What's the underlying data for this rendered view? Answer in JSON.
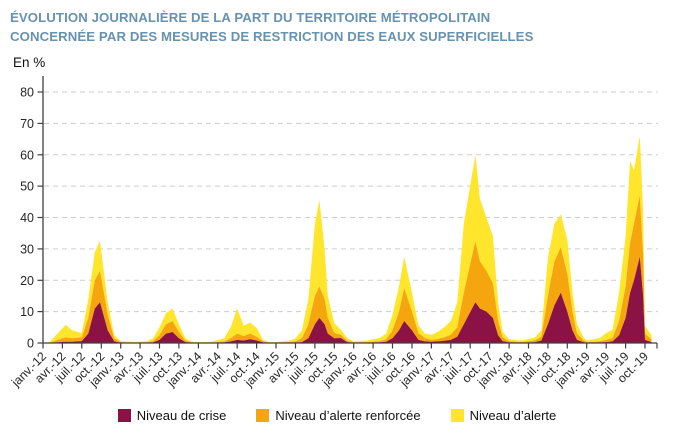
{
  "title": {
    "line1": "ÉVOLUTION JOURNALIÈRE DE LA PART DU TERRITOIRE MÉTROPOLITAIN",
    "line2": "CONCERNÉE PAR DES MESURES DE RESTRICTION DES EAUX SUPERFICIELLES"
  },
  "colors": {
    "title_blue": "#6792B0",
    "axis": "#404040",
    "grid": "#CDCDCD",
    "tick_text": "#262626"
  },
  "chart_data": {
    "type": "area",
    "stacked": true,
    "unit_label": "En %",
    "ylabel": "En %",
    "ylim": [
      0,
      80
    ],
    "yticks": [
      0,
      10,
      20,
      30,
      40,
      50,
      60,
      70,
      80
    ],
    "grid": "horizontal-dashed",
    "legend_position": "bottom",
    "x_description": "Daily data from janv.-12 to oct.-19; x stored as months since janv.-12; ticks every 3 months",
    "xtick_labels": [
      "janv.-12",
      "avr.-12",
      "juil.-12",
      "oct.-12",
      "janv.-13",
      "avr.-13",
      "juil.-13",
      "oct.-13",
      "janv.-14",
      "avr.-14",
      "juil.-14",
      "oct.-14",
      "janv.-15",
      "avr.-15",
      "juil.-15",
      "oct.-15",
      "janv.-16",
      "avr.-16",
      "juil.-16",
      "oct.-16",
      "janv.-17",
      "avr.-17",
      "juil.-17",
      "oct.-17",
      "janv.-18",
      "avr.-18",
      "juil.-18",
      "oct.-18",
      "janv.-19",
      "avr.-19",
      "juil.-19",
      "oct.-19"
    ],
    "series": [
      {
        "name": "Niveau de crise",
        "color": "#8A1245"
      },
      {
        "name": "Niveau d’alerte renforcée",
        "color": "#F5A60F"
      },
      {
        "name": "Niveau d’alerte",
        "color": "#FFE52B"
      }
    ],
    "points_format": "[month_index, niveau_de_crise, niveau_alerte_renforcee, niveau_alerte] — layer values in %, stacked total = sum",
    "points": [
      [
        0,
        0,
        0,
        0
      ],
      [
        1,
        0,
        0,
        0.3
      ],
      [
        2,
        0.2,
        0.6,
        1.7
      ],
      [
        3.5,
        0.4,
        1.4,
        4.0
      ],
      [
        4.5,
        0.4,
        1.1,
        2.5
      ],
      [
        6,
        0.6,
        1.2,
        1.4
      ],
      [
        7,
        3,
        5,
        6
      ],
      [
        8,
        11,
        9,
        9
      ],
      [
        8.8,
        13,
        10,
        9.5
      ],
      [
        10,
        4,
        5,
        4
      ],
      [
        11,
        0.5,
        1,
        1
      ],
      [
        12,
        0.1,
        0.2,
        0.3
      ],
      [
        14,
        0,
        0.1,
        0.2
      ],
      [
        16,
        0.1,
        0.1,
        0.4
      ],
      [
        17,
        0.2,
        0.4,
        0.9
      ],
      [
        18,
        1,
        1.5,
        2.5
      ],
      [
        19,
        3,
        3,
        3.5
      ],
      [
        20,
        3.5,
        3.5,
        4
      ],
      [
        21,
        1.5,
        2,
        2.5
      ],
      [
        22,
        0.3,
        0.5,
        0.7
      ],
      [
        23,
        0.1,
        0.1,
        0.2
      ],
      [
        24,
        0,
        0.1,
        0.2
      ],
      [
        26,
        0,
        0.1,
        0.3
      ],
      [
        28,
        0.2,
        0.3,
        1.0
      ],
      [
        29,
        0.5,
        1.0,
        3.5
      ],
      [
        30,
        1,
        2,
        8
      ],
      [
        31,
        0.8,
        1.4,
        3.3
      ],
      [
        32,
        1.2,
        1.8,
        3.5
      ],
      [
        33,
        0.8,
        1.2,
        2.8
      ],
      [
        34,
        0.2,
        0.3,
        0.5
      ],
      [
        35,
        0,
        0.1,
        0.2
      ],
      [
        36,
        0,
        0.1,
        0.2
      ],
      [
        38,
        0.1,
        0.2,
        0.4
      ],
      [
        39,
        0.1,
        0.4,
        1.0
      ],
      [
        40,
        0.3,
        1.2,
        2.5
      ],
      [
        41,
        1.5,
        4.5,
        8
      ],
      [
        42,
        6,
        9,
        23
      ],
      [
        42.7,
        8,
        10,
        27.5
      ],
      [
        43.5,
        6,
        8,
        16
      ],
      [
        44,
        3,
        5,
        7
      ],
      [
        45,
        1.5,
        1.7,
        3.1
      ],
      [
        46,
        1.6,
        1.0,
        1.6
      ],
      [
        47,
        0.3,
        0.5,
        0.8
      ],
      [
        48,
        0.1,
        0.1,
        0.3
      ],
      [
        50,
        0.1,
        0.2,
        0.5
      ],
      [
        52,
        0.2,
        0.4,
        1.0
      ],
      [
        53,
        0.4,
        0.8,
        1.8
      ],
      [
        54,
        1.5,
        2.5,
        5
      ],
      [
        55,
        4,
        6,
        8
      ],
      [
        55.8,
        7,
        10.5,
        10
      ],
      [
        57,
        4,
        6,
        6
      ],
      [
        58,
        1,
        2.2,
        2.4
      ],
      [
        59,
        0.5,
        1.1,
        1.4
      ],
      [
        60,
        0.4,
        0.6,
        1.6
      ],
      [
        61,
        0.5,
        0.8,
        2.3
      ],
      [
        62,
        0.7,
        1.1,
        3.2
      ],
      [
        63,
        1,
        1.6,
        4.4
      ],
      [
        64,
        2,
        3,
        8
      ],
      [
        65,
        6,
        10,
        22
      ],
      [
        66.8,
        13,
        19.5,
        27.5
      ],
      [
        67.5,
        11,
        15,
        20
      ],
      [
        68.5,
        10,
        13,
        17
      ],
      [
        69.5,
        8,
        11,
        15
      ],
      [
        70.3,
        2.5,
        4.5,
        6
      ],
      [
        71,
        0.6,
        1.2,
        1.8
      ],
      [
        72,
        0.2,
        0.4,
        0.6
      ],
      [
        74,
        0.1,
        0.2,
        0.5
      ],
      [
        76,
        0.3,
        0.6,
        0.9
      ],
      [
        77,
        0.8,
        1.2,
        2.0
      ],
      [
        78,
        6,
        9,
        12
      ],
      [
        79,
        12,
        14,
        12
      ],
      [
        80,
        16,
        14.5,
        10.5
      ],
      [
        81,
        10,
        12,
        11
      ],
      [
        81.8,
        4,
        6,
        6
      ],
      [
        82.5,
        1,
        2,
        3
      ],
      [
        83.5,
        0.3,
        0.6,
        0.9
      ],
      [
        84,
        0.1,
        0.2,
        0.5
      ],
      [
        86,
        0.2,
        0.3,
        1.1
      ],
      [
        87,
        0.3,
        0.7,
        2.2
      ],
      [
        88,
        0.5,
        1.1,
        2.6
      ],
      [
        89,
        2.5,
        4.5,
        9
      ],
      [
        90,
        8,
        10,
        16
      ],
      [
        90.7,
        16,
        16,
        26
      ],
      [
        91.3,
        20,
        18,
        17
      ],
      [
        92.2,
        27.5,
        19.5,
        19
      ],
      [
        92.7,
        15,
        13,
        14
      ],
      [
        93,
        1,
        2,
        2.5
      ],
      [
        94,
        0.3,
        0.8,
        1.4
      ]
    ]
  }
}
